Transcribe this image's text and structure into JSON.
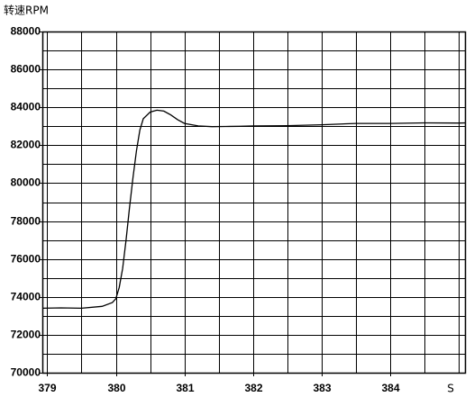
{
  "chart_data": {
    "type": "line",
    "title": "转速RPM",
    "x_label": "S",
    "x": [
      378.93,
      379.2,
      379.5,
      379.8,
      379.95,
      380.0,
      380.05,
      380.1,
      380.15,
      380.2,
      380.25,
      380.3,
      380.35,
      380.4,
      380.5,
      380.6,
      380.7,
      380.8,
      380.9,
      381.0,
      381.2,
      381.4,
      381.6,
      381.8,
      382.0,
      382.5,
      383.0,
      383.5,
      384.0,
      384.5,
      385.0,
      385.1
    ],
    "series": [
      {
        "name": "转速",
        "color": "#000000",
        "values": [
          73400,
          73420,
          73400,
          73500,
          73700,
          73900,
          74500,
          75500,
          77000,
          78700,
          80300,
          81700,
          82800,
          83400,
          83750,
          83850,
          83800,
          83600,
          83350,
          83150,
          83020,
          82980,
          82990,
          83000,
          83020,
          83030,
          83080,
          83150,
          83150,
          83180,
          83170,
          83180
        ]
      }
    ],
    "xlim": [
      378.93,
      385.1
    ],
    "ylim": [
      70000,
      88000
    ],
    "xticks": [
      379,
      380,
      381,
      382,
      383,
      384
    ],
    "yticks": [
      70000,
      72000,
      74000,
      76000,
      78000,
      80000,
      82000,
      84000,
      86000,
      88000
    ],
    "minor_xticks": [
      379.5,
      380.5,
      381.5,
      382.5,
      383.5,
      384.5,
      385
    ],
    "minor_yticks": [
      71000,
      73000,
      75000,
      77000,
      79000,
      81000,
      83000,
      85000,
      87000
    ],
    "grid": true
  }
}
